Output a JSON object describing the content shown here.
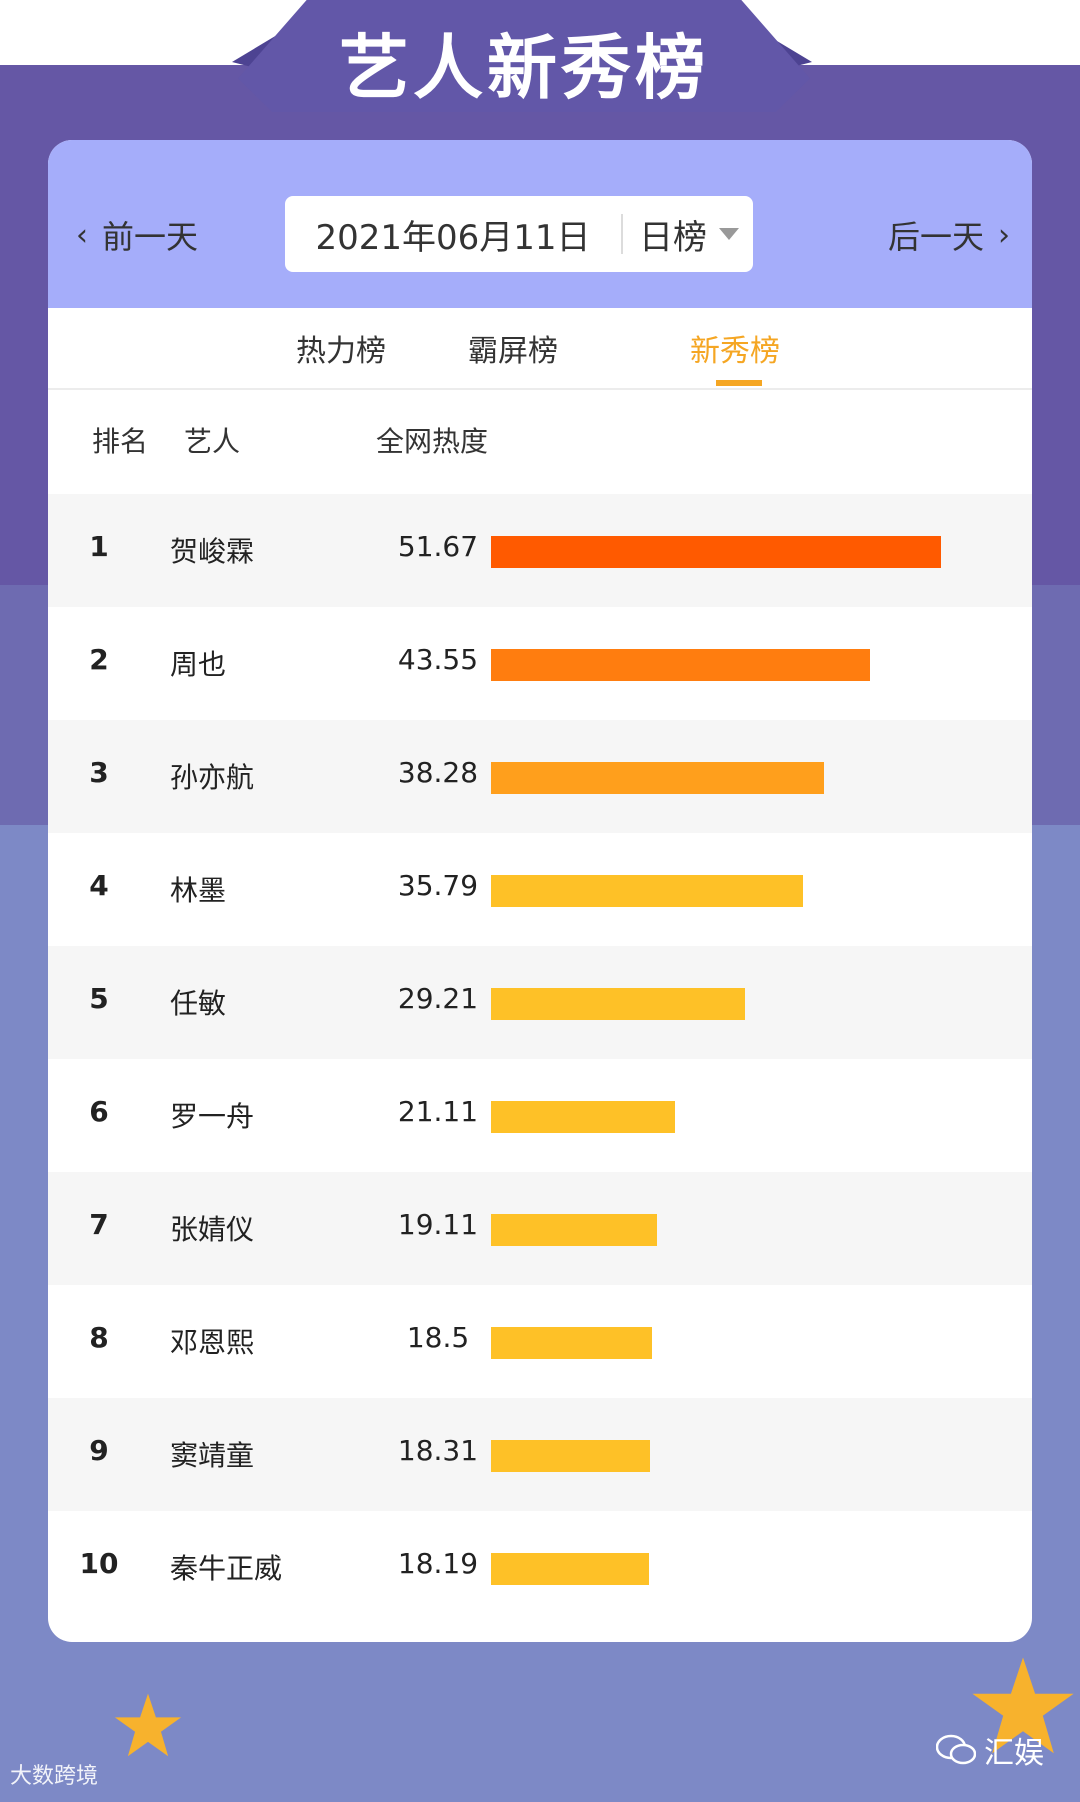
{
  "header": {
    "title": "艺人新秀榜"
  },
  "nav": {
    "prev_label": "前一天",
    "next_label": "后一天",
    "date": "2021年06月11日",
    "period": "日榜"
  },
  "tabs": [
    {
      "label": "热力榜",
      "active": false
    },
    {
      "label": "霸屏榜",
      "active": false
    },
    {
      "label": "新秀榜",
      "active": true
    }
  ],
  "table": {
    "headers": {
      "rank": "排名",
      "artist": "艺人",
      "heat": "全网热度"
    },
    "rows": [
      {
        "rank": "1",
        "name": "贺峻霖",
        "score": "51.67",
        "value": 51.67,
        "color": "#ff5a00"
      },
      {
        "rank": "2",
        "name": "周也",
        "score": "43.55",
        "value": 43.55,
        "color": "#ff7d0f"
      },
      {
        "rank": "3",
        "name": "孙亦航",
        "score": "38.28",
        "value": 38.28,
        "color": "#ff9f1c"
      },
      {
        "rank": "4",
        "name": "林墨",
        "score": "35.79",
        "value": 35.79,
        "color": "#fec127"
      },
      {
        "rank": "5",
        "name": "任敏",
        "score": "29.21",
        "value": 29.21,
        "color": "#fec127"
      },
      {
        "rank": "6",
        "name": "罗一舟",
        "score": "21.11",
        "value": 21.11,
        "color": "#fec127"
      },
      {
        "rank": "7",
        "name": "张婧仪",
        "score": "19.11",
        "value": 19.11,
        "color": "#fec127"
      },
      {
        "rank": "8",
        "name": "邓恩熙",
        "score": "18.5",
        "value": 18.5,
        "color": "#fec127"
      },
      {
        "rank": "9",
        "name": "窦靖童",
        "score": "18.31",
        "value": 18.31,
        "color": "#fec127"
      },
      {
        "rank": "10",
        "name": "秦牛正威",
        "score": "18.19",
        "value": 18.19,
        "color": "#fec127"
      }
    ]
  },
  "footer": {
    "watermark_left": "大数跨境",
    "brand": "汇娱"
  },
  "icons": {
    "prev": "chevron-left-icon",
    "next": "chevron-right-icon",
    "dropdown": "caret-down-icon",
    "wechat": "wechat-icon",
    "star": "star-icon"
  },
  "colors": {
    "background": "#6557a5",
    "card_header": "#a5adfa",
    "active_tab": "#f5a623"
  }
}
